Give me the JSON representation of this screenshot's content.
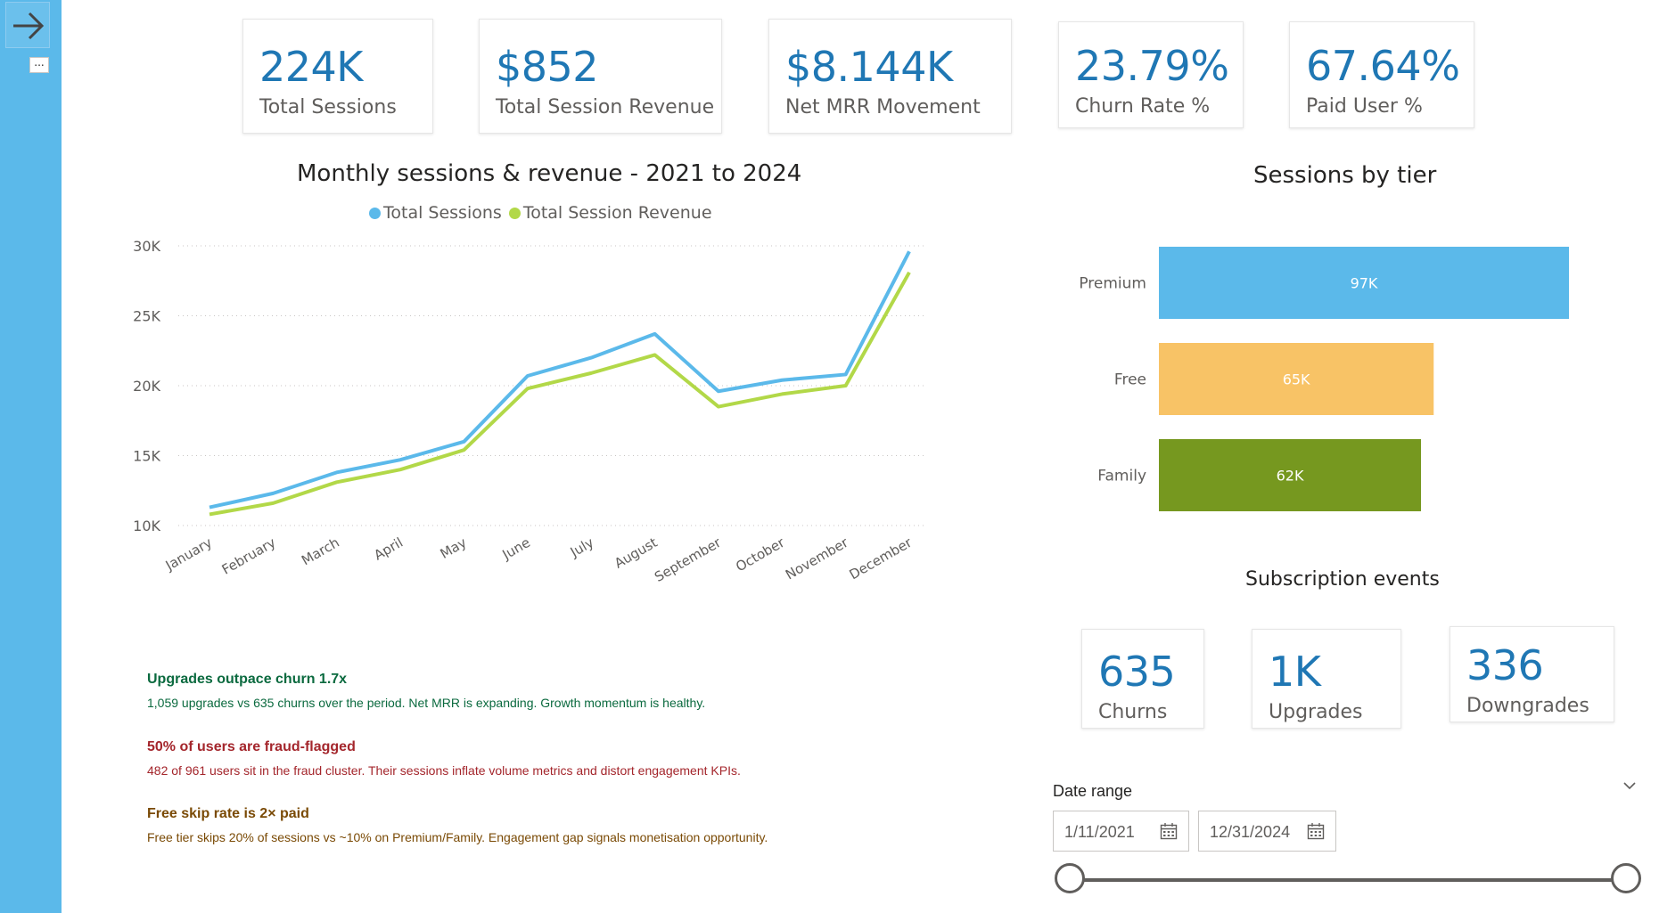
{
  "sidebar": {
    "expand_icon": "arrow-right-icon",
    "more_label": "..."
  },
  "kpis": [
    {
      "value": "224K",
      "label": "Total Sessions"
    },
    {
      "value": "$852",
      "label": "Total Session Revenue"
    },
    {
      "value": "$8.144K",
      "label": "Net MRR Movement"
    },
    {
      "value": "23.79%",
      "label": "Churn Rate %"
    },
    {
      "value": "67.64%",
      "label": "Paid User %"
    }
  ],
  "line_chart": {
    "title": "Monthly sessions & revenue - 2021 to 2024",
    "legend": [
      "Total Sessions",
      "Total Session Revenue"
    ]
  },
  "bar_chart": {
    "title": "Sessions by tier"
  },
  "subscription": {
    "title": "Subscription events",
    "cards": [
      {
        "value": "635",
        "label": "Churns"
      },
      {
        "value": "1K",
        "label": "Upgrades"
      },
      {
        "value": "336",
        "label": "Downgrades"
      }
    ]
  },
  "insights": [
    {
      "heading": "Upgrades outpace churn 1.7x",
      "body": "1,059 upgrades vs 635 churns over the period. Net MRR is expanding. Growth momentum is healthy.",
      "color": "#0b6a3f"
    },
    {
      "heading": "50% of users are fraud-flagged",
      "body": "482 of 961 users sit in the fraud cluster. Their sessions inflate volume metrics and distort engagement KPIs.",
      "color": "#a4262c"
    },
    {
      "heading": "Free skip rate is 2× paid",
      "body": "Free tier skips 20% of sessions vs ~10% on Premium/Family. Engagement gap signals monetisation opportunity.",
      "color": "#7a4a05"
    }
  ],
  "date_range": {
    "label": "Date range",
    "start": "1/11/2021",
    "end": "12/31/2024",
    "slider_start": 0,
    "slider_end": 1
  },
  "colors": {
    "sessions": "#5bb9ea",
    "revenue": "#b2d848",
    "premium": "#5bb9ea",
    "free": "#f8c366",
    "family": "#76981f",
    "kpi_value": "#1f77b4"
  },
  "chart_data": [
    {
      "type": "line",
      "title": "Monthly sessions & revenue - 2021 to 2024",
      "x": [
        "January",
        "February",
        "March",
        "April",
        "May",
        "June",
        "July",
        "August",
        "September",
        "October",
        "November",
        "December"
      ],
      "ylim": [
        10000,
        30000
      ],
      "yticks": [
        "10K",
        "15K",
        "20K",
        "25K",
        "30K"
      ],
      "grid": true,
      "legend_position": "top",
      "series": [
        {
          "name": "Total Sessions",
          "values": [
            11300,
            12300,
            13800,
            14700,
            16000,
            20700,
            22000,
            23700,
            19600,
            20400,
            20800,
            29600
          ]
        },
        {
          "name": "Total Session Revenue",
          "values": [
            10800,
            11600,
            13100,
            14000,
            15400,
            19800,
            20900,
            22200,
            18500,
            19400,
            20000,
            28100
          ]
        }
      ]
    },
    {
      "type": "bar",
      "orientation": "horizontal",
      "title": "Sessions by tier",
      "categories": [
        "Premium",
        "Free",
        "Family"
      ],
      "values": [
        97000,
        65000,
        62000
      ],
      "data_labels": [
        "97K",
        "65K",
        "62K"
      ]
    }
  ]
}
